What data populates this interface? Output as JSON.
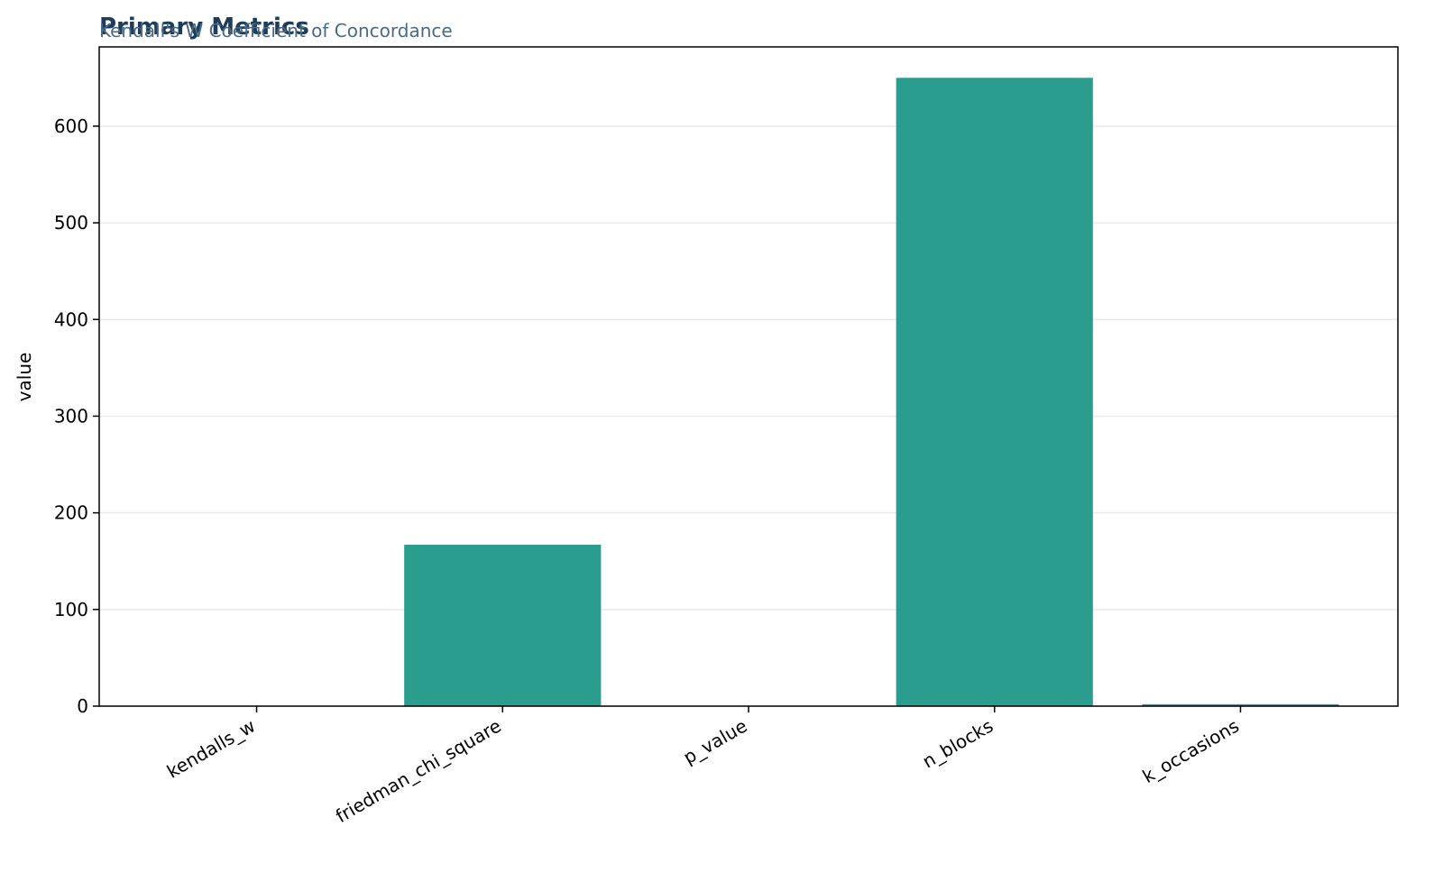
{
  "chart_data": {
    "type": "bar",
    "title": "Primary Metrics",
    "subtitle": "Kendall's W Coefficient of Concordance",
    "y_label": "value",
    "categories": [
      "kendalls_w",
      "friedman_chi_square",
      "p_value",
      "n_blocks",
      "k_occasions"
    ],
    "values": [
      0.26,
      167,
      0,
      650,
      2
    ],
    "color": "#2a9d8f",
    "ylim": [
      0,
      682
    ],
    "yticks": [
      0,
      100,
      200,
      300,
      400,
      500,
      600
    ],
    "grid": true
  }
}
